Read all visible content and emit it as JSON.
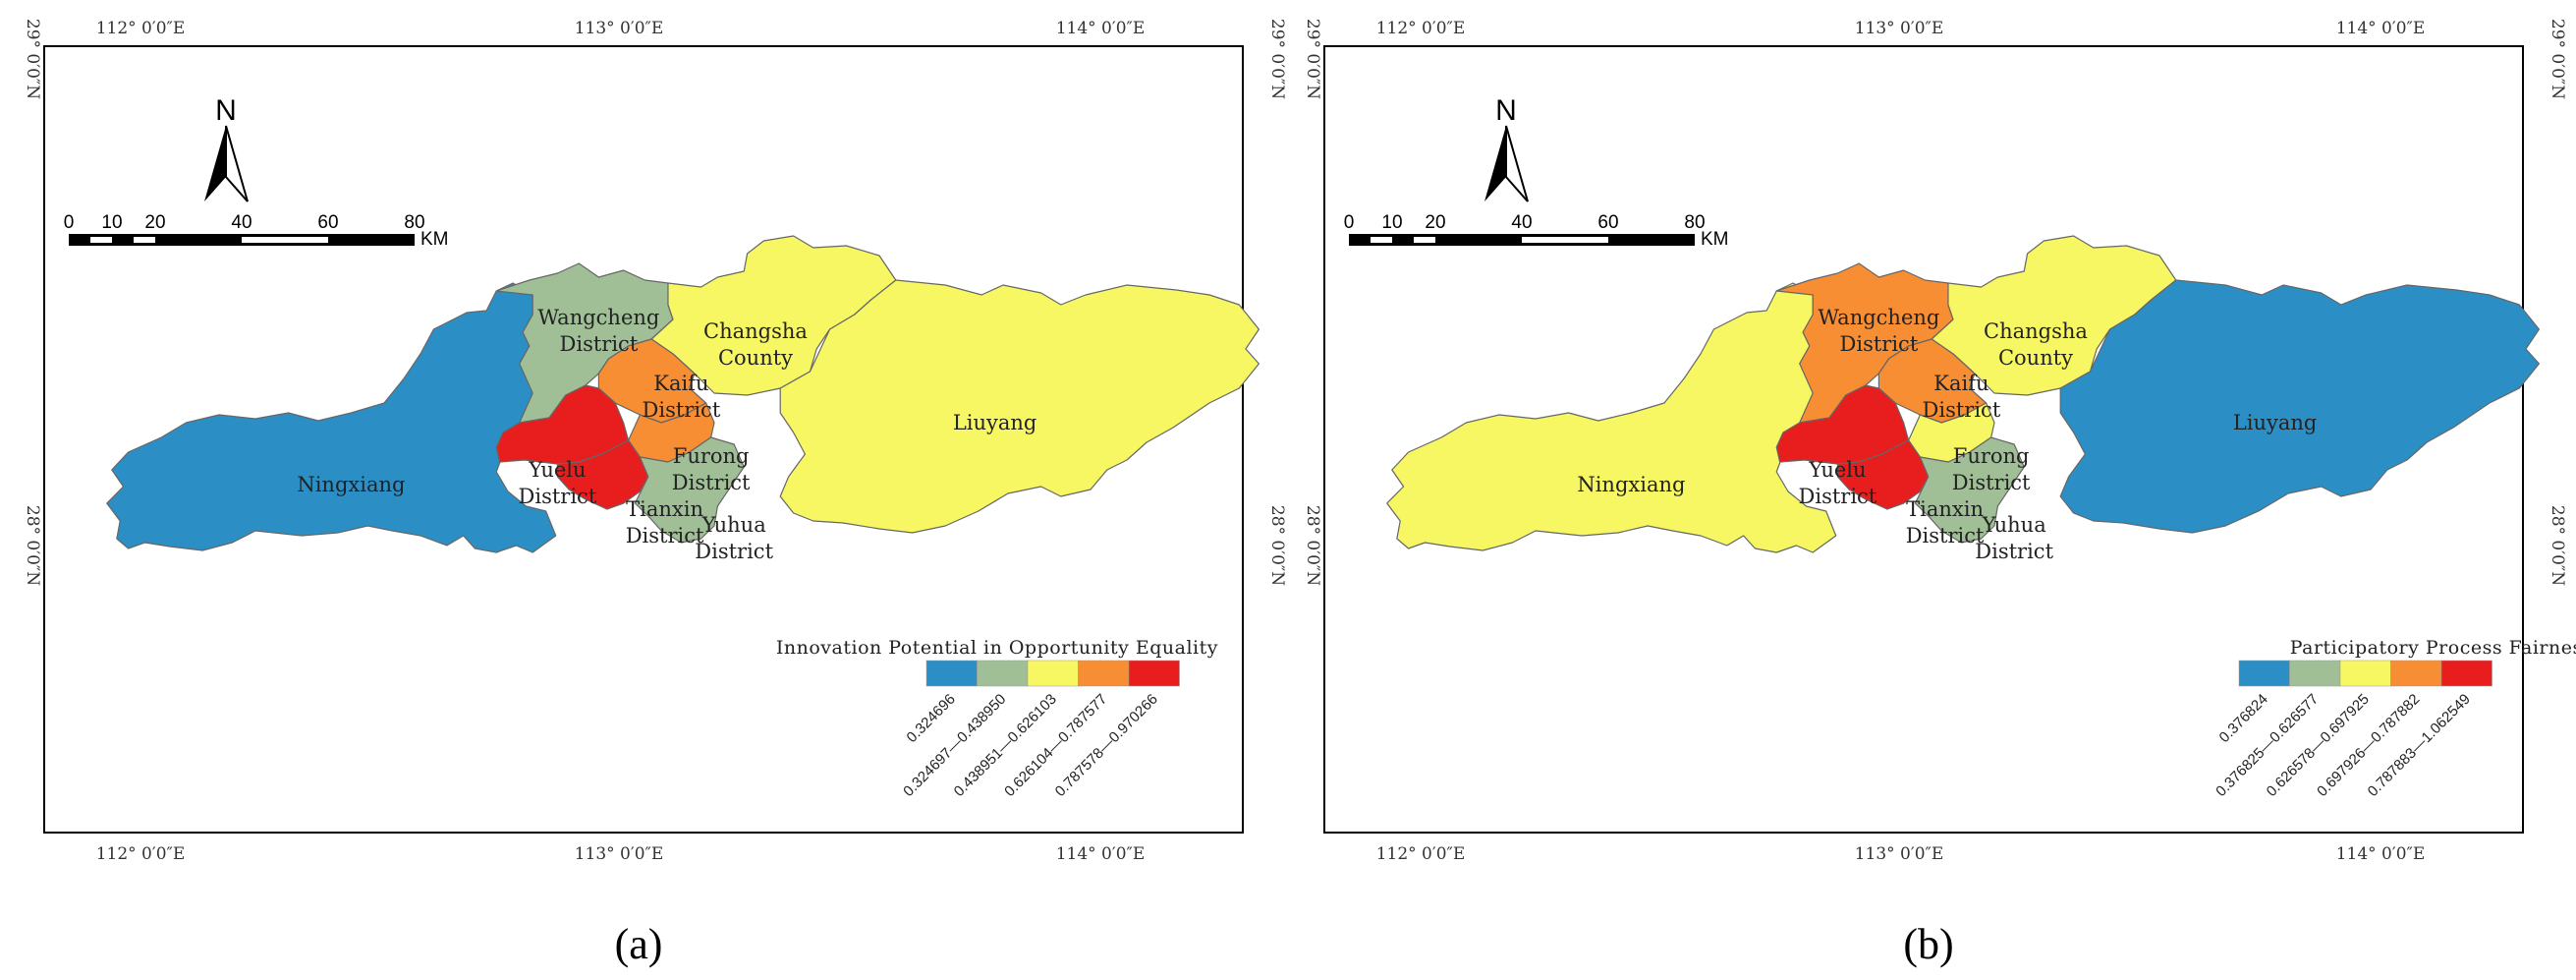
{
  "colors": {
    "class1": "#2b8fc6",
    "class2": "#a0bf97",
    "class3": "#f7f763",
    "class4": "#f88e34",
    "class5": "#e81e1e"
  },
  "labels": {
    "lon_112": "112° 0′0″E",
    "lon_113": "113° 0′0″E",
    "lon_114": "114° 0′0″E",
    "lat_29": "29° 0′0″N",
    "lat_28": "28° 0′0″N",
    "north": "N",
    "scale_ticks": [
      "0",
      "10",
      "20",
      "40",
      "60",
      "80"
    ],
    "scale_unit": "KM"
  },
  "district_names": {
    "wangcheng": [
      "Wangcheng",
      "District"
    ],
    "changsha": [
      "Changsha",
      "County"
    ],
    "kaifu": [
      "Kaifu",
      "District"
    ],
    "furong": [
      "Furong",
      "District"
    ],
    "yuelu": [
      "Yuelu",
      "District"
    ],
    "tianxin": [
      "Tianxin",
      "District"
    ],
    "yuhua": [
      "Yuhua",
      "District"
    ],
    "ningxiang": "Ningxiang",
    "liuyang": "Liuyang"
  },
  "maps": [
    {
      "caption": "(a)",
      "legend_title": "Innovation Potential in Opportunity Equality",
      "legend_classes": [
        "0.324696",
        "0.324697—0.438950",
        "0.438951—0.626103",
        "0.626104—0.787577",
        "0.787578—0.970266"
      ],
      "district_class": {
        "ningxiang": 1,
        "wangcheng": 2,
        "changsha": 3,
        "liuyang": 3,
        "kaifu": 4,
        "furong": 4,
        "yuelu": 5,
        "tianxin": 5,
        "yuhua": 2
      }
    },
    {
      "caption": "(b)",
      "legend_title": "Participatory Process Fairness",
      "legend_classes": [
        "0.376824",
        "0.376825—0.626577",
        "0.626578—0.697925",
        "0.697926—0.787882",
        "0.787883—1.062549"
      ],
      "district_class": {
        "ningxiang": 3,
        "wangcheng": 4,
        "changsha": 3,
        "liuyang": 1,
        "kaifu": 4,
        "furong": 3,
        "yuelu": 5,
        "tianxin": 5,
        "yuhua": 2
      }
    }
  ]
}
